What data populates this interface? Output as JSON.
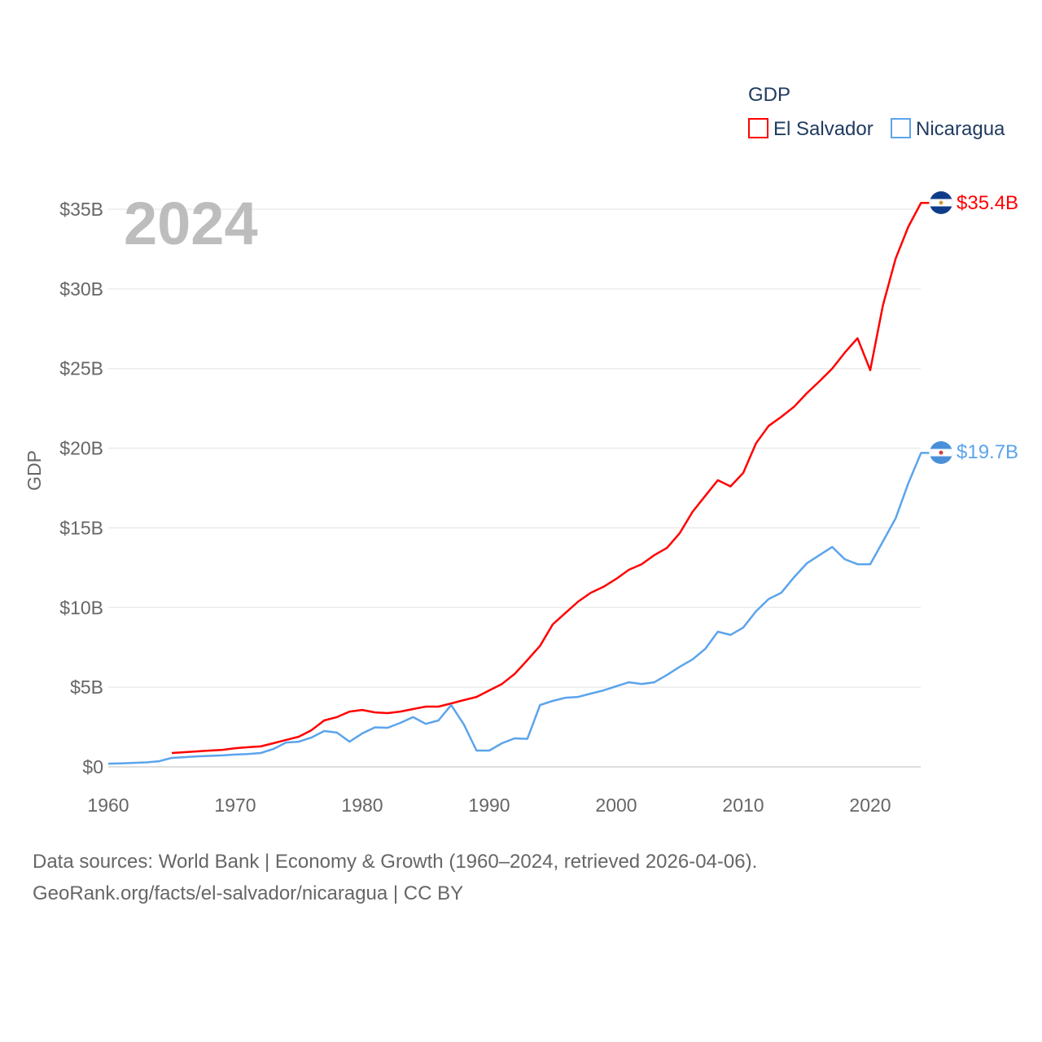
{
  "chart_data": {
    "type": "line",
    "title": "",
    "year_label": "2024",
    "xlabel": "",
    "ylabel": "GDP",
    "xlim": [
      1960,
      2024
    ],
    "ylim": [
      0,
      35
    ],
    "x_ticks": [
      "1960",
      "1970",
      "1980",
      "1990",
      "2000",
      "2010",
      "2020"
    ],
    "y_ticks": [
      "$0",
      "$5B",
      "$10B",
      "$15B",
      "$20B",
      "$25B",
      "$30B",
      "$35B"
    ],
    "legend": {
      "title": "GDP",
      "position": "top-right"
    },
    "grid": true,
    "series": [
      {
        "name": "El Salvador",
        "color": "#ff0000",
        "end_label": "$35.4B",
        "start_year": 1965,
        "values": [
          0.87,
          0.92,
          0.97,
          1.02,
          1.07,
          1.17,
          1.23,
          1.28,
          1.48,
          1.69,
          1.89,
          2.3,
          2.91,
          3.12,
          3.47,
          3.57,
          3.42,
          3.37,
          3.47,
          3.63,
          3.78,
          3.78,
          3.98,
          4.19,
          4.39,
          4.8,
          5.2,
          5.83,
          6.7,
          7.6,
          8.94,
          9.66,
          10.37,
          10.93,
          11.3,
          11.8,
          12.37,
          12.72,
          13.29,
          13.75,
          14.67,
          16.0,
          17.0,
          17.99,
          17.6,
          18.45,
          20.3,
          21.4,
          21.97,
          22.6,
          23.45,
          24.2,
          24.99,
          26.0,
          26.9,
          24.9,
          28.97,
          31.9,
          33.9,
          35.4
        ]
      },
      {
        "name": "Nicaragua",
        "color": "#5ba4ec",
        "end_label": "$19.7B",
        "start_year": 1960,
        "values": [
          0.2,
          0.22,
          0.25,
          0.28,
          0.35,
          0.56,
          0.61,
          0.66,
          0.69,
          0.72,
          0.77,
          0.8,
          0.87,
          1.12,
          1.53,
          1.58,
          1.84,
          2.25,
          2.15,
          1.58,
          2.1,
          2.48,
          2.45,
          2.76,
          3.12,
          2.7,
          2.91,
          3.88,
          2.66,
          1.02,
          1.02,
          1.48,
          1.79,
          1.76,
          3.88,
          4.14,
          4.34,
          4.39,
          4.6,
          4.8,
          5.06,
          5.31,
          5.2,
          5.31,
          5.77,
          6.28,
          6.74,
          7.4,
          8.48,
          8.28,
          8.74,
          9.76,
          10.53,
          10.93,
          11.9,
          12.77,
          13.29,
          13.8,
          13.03,
          12.72,
          12.72,
          14.15,
          15.6,
          17.8,
          19.7
        ]
      }
    ]
  },
  "footer": {
    "line1": "Data sources: World Bank | Economy & Growth (1960–2024, retrieved 2026-04-06).",
    "line2": "GeoRank.org/facts/el-salvador/nicaragua | CC BY"
  }
}
